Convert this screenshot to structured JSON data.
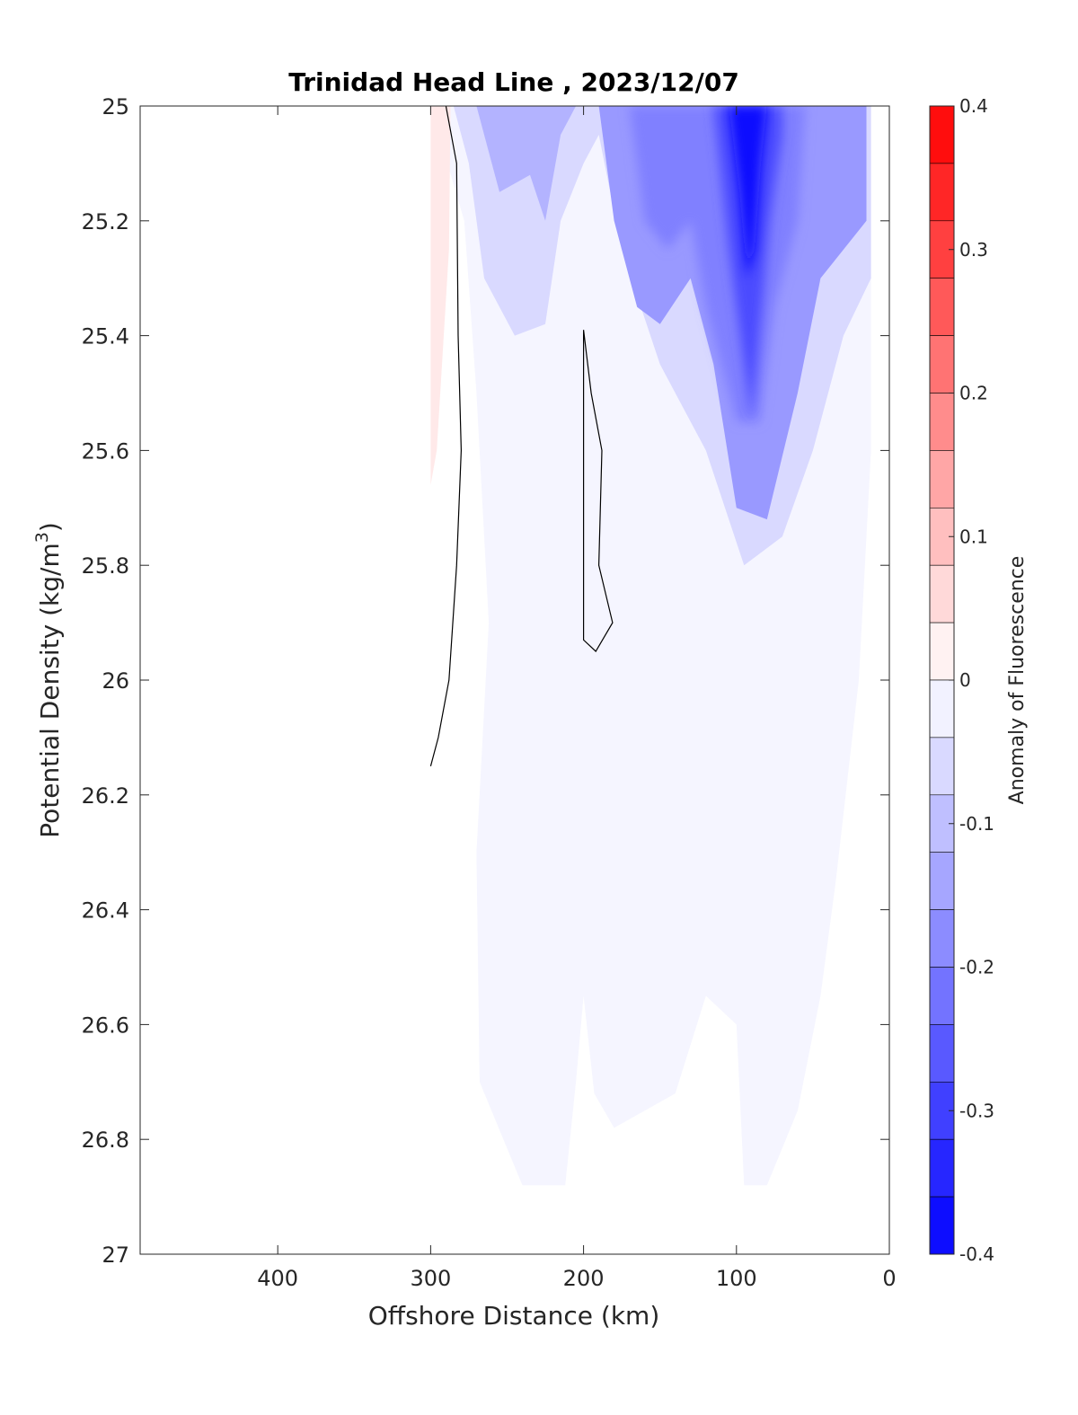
{
  "chart_data": {
    "type": "contour",
    "title": "Trinidad Head Line , 2023/12/07",
    "xlabel": "Offshore Distance (km)",
    "ylabel": "Potential Density (kg/m",
    "ylabel_sup": "3",
    "ylabel_close": ")",
    "x_reversed": true,
    "xlim": [
      0,
      490
    ],
    "ylim": [
      25,
      27
    ],
    "y_reversed": true,
    "x_ticks": [
      400,
      300,
      200,
      100,
      0
    ],
    "x_tick_labels": [
      "400",
      "300",
      "200",
      "100",
      "0"
    ],
    "y_ticks": [
      25,
      25.2,
      25.4,
      25.6,
      25.8,
      26,
      26.2,
      26.4,
      26.6,
      26.8,
      27
    ],
    "y_tick_labels": [
      "25",
      "25.2",
      "25.4",
      "25.6",
      "25.8",
      "26",
      "26.2",
      "26.4",
      "26.6",
      "26.8",
      "27"
    ],
    "grid": false,
    "colorbar": {
      "label": "Anomaly of Fluorescence",
      "range": [
        -0.4,
        0.4
      ],
      "levels": 20,
      "ticks": [
        0.4,
        0.3,
        0.2,
        0.1,
        0,
        -0.1,
        -0.2,
        -0.3,
        -0.4
      ],
      "tick_labels": [
        "0.4",
        "0.3",
        "0.2",
        "0.1",
        "0",
        "-0.1",
        "-0.2",
        "-0.3",
        "-0.4"
      ],
      "colormap": "blue-white-red",
      "max_color": "#ff0000",
      "min_color": "#0000ff"
    },
    "features": [
      {
        "name": "positive anomaly",
        "value": 0.03,
        "x_range": [
          283,
          300
        ],
        "y_range": [
          25,
          25.66
        ]
      },
      {
        "name": "negative anomaly core",
        "value": -0.35,
        "x_range": [
          75,
          110
        ],
        "y_range": [
          25,
          25.5
        ]
      },
      {
        "name": "negative anomaly",
        "value": -0.18,
        "x_range": [
          130,
          170
        ],
        "y_range": [
          25,
          25.35
        ]
      },
      {
        "name": "zero contour",
        "value": 0,
        "x": [
          290,
          283,
          282,
          280,
          283,
          288,
          295,
          300
        ],
        "y": [
          25,
          25.1,
          25.4,
          25.6,
          25.8,
          26,
          26.1,
          26.15
        ]
      },
      {
        "name": "zero contour closed",
        "value": 0,
        "x": [
          200,
          195,
          188,
          190,
          181,
          192,
          200,
          200
        ],
        "y": [
          25.39,
          25.5,
          25.6,
          25.8,
          25.9,
          25.95,
          25.93,
          25.5
        ]
      }
    ]
  }
}
